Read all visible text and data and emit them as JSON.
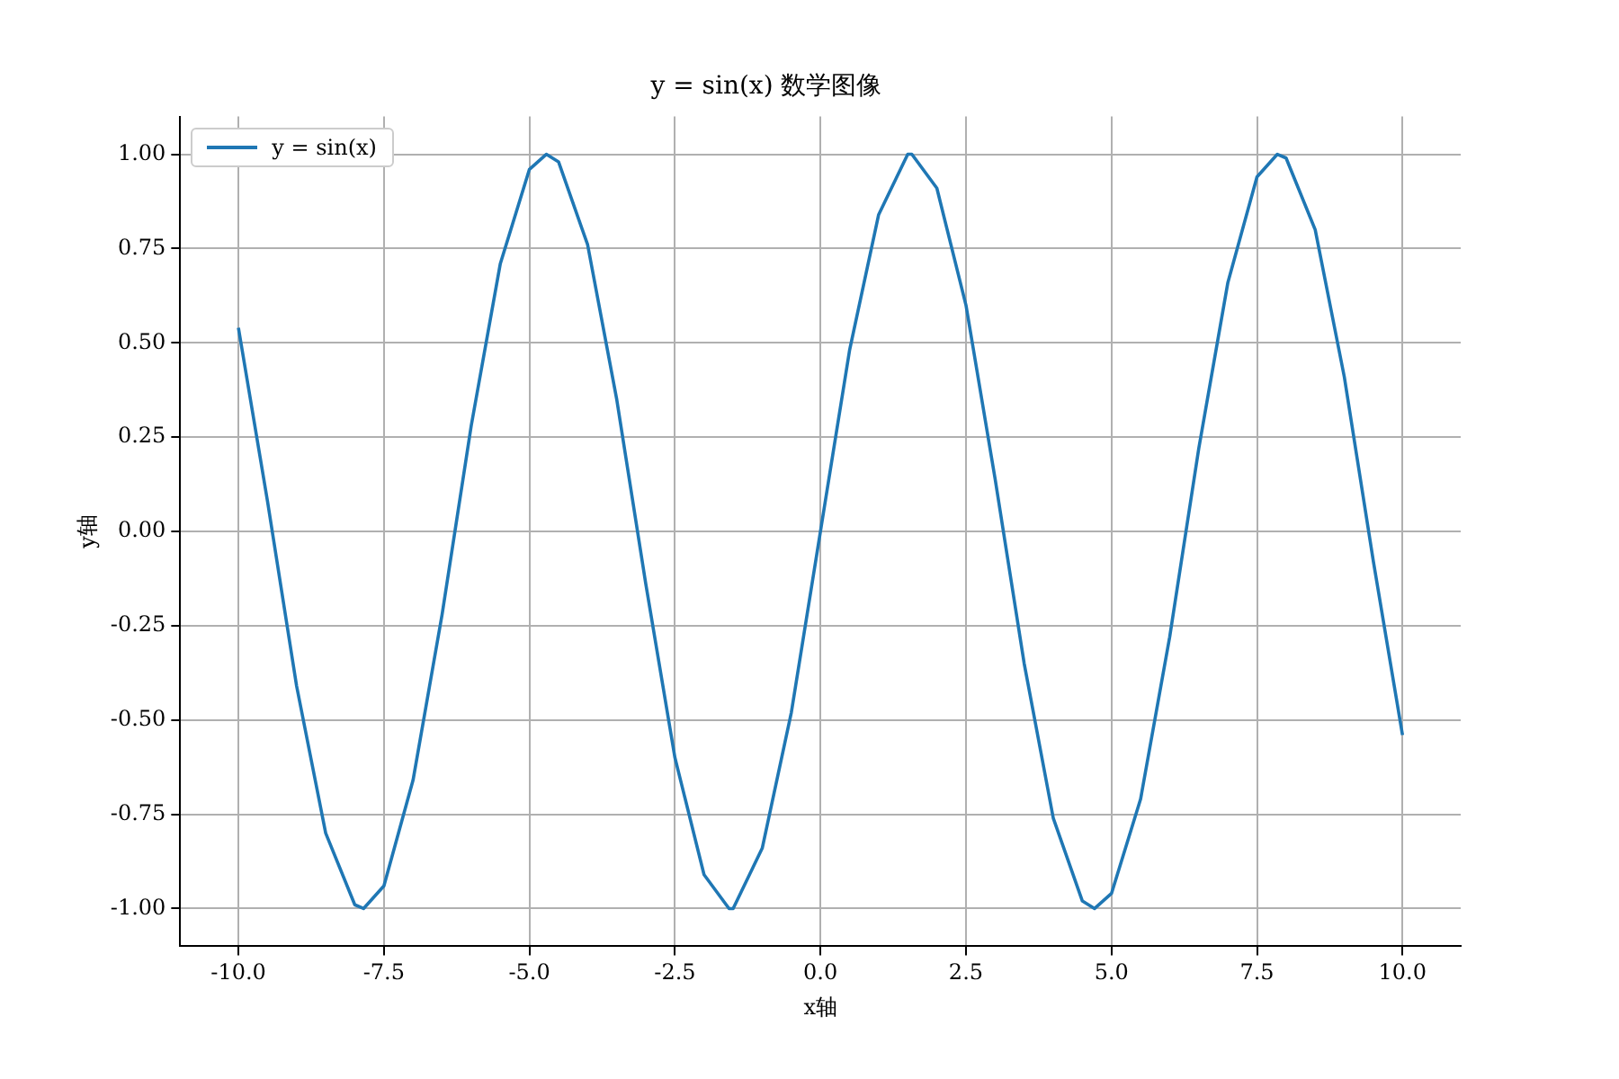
{
  "chart_data": {
    "type": "line",
    "title": "y = sin(x) 数学图像",
    "xlabel": "x轴",
    "ylabel": "y轴",
    "x": [
      -10,
      -9.5,
      -9,
      -8.5,
      -8,
      -7.85,
      -7.5,
      -7,
      -6.5,
      -6,
      -5.5,
      -5,
      -4.71,
      -4.5,
      -4,
      -3.5,
      -3,
      -2.5,
      -2,
      -1.57,
      -1.5,
      -1,
      -0.5,
      0,
      0.5,
      1,
      1.5,
      1.57,
      2,
      2.5,
      3,
      3.5,
      4,
      4.5,
      4.71,
      5,
      5.5,
      6,
      6.5,
      7,
      7.5,
      7.85,
      8,
      8.5,
      9,
      9.5,
      10
    ],
    "series": [
      {
        "name": "y = sin(x)",
        "color": "#1f77b4",
        "values": [
          0.54,
          0.08,
          -0.41,
          -0.8,
          -0.99,
          -1,
          -0.94,
          -0.66,
          -0.22,
          0.28,
          0.71,
          0.96,
          1,
          0.98,
          0.76,
          0.35,
          -0.14,
          -0.6,
          -0.91,
          -1,
          -1,
          -0.84,
          -0.48,
          0,
          0.48,
          0.84,
          1,
          1,
          0.91,
          0.6,
          0.14,
          -0.35,
          -0.76,
          -0.98,
          -1,
          -0.96,
          -0.71,
          -0.28,
          0.22,
          0.66,
          0.94,
          1,
          0.99,
          0.8,
          0.41,
          -0.08,
          -0.54
        ]
      }
    ],
    "xlim": [
      -11,
      11
    ],
    "xticks": [
      {
        "value": -10,
        "label": "-10.0"
      },
      {
        "value": -7.5,
        "label": "-7.5"
      },
      {
        "value": -5,
        "label": "-5.0"
      },
      {
        "value": -2.5,
        "label": "-2.5"
      },
      {
        "value": 0,
        "label": "0.0"
      },
      {
        "value": 2.5,
        "label": "2.5"
      },
      {
        "value": 5,
        "label": "5.0"
      },
      {
        "value": 7.5,
        "label": "7.5"
      },
      {
        "value": 10,
        "label": "10.0"
      }
    ],
    "ylim": [
      -1.1,
      1.1
    ],
    "yticks": [
      {
        "value": -1,
        "label": "-1.00"
      },
      {
        "value": -0.75,
        "label": "-0.75"
      },
      {
        "value": -0.5,
        "label": "-0.50"
      },
      {
        "value": -0.25,
        "label": "-0.25"
      },
      {
        "value": 0,
        "label": "0.00"
      },
      {
        "value": 0.25,
        "label": "0.25"
      },
      {
        "value": 0.5,
        "label": "0.50"
      },
      {
        "value": 0.75,
        "label": "0.75"
      },
      {
        "value": 1,
        "label": "1.00"
      }
    ],
    "grid": true,
    "legend": "top left",
    "marker": "none",
    "line_style": "solid"
  }
}
